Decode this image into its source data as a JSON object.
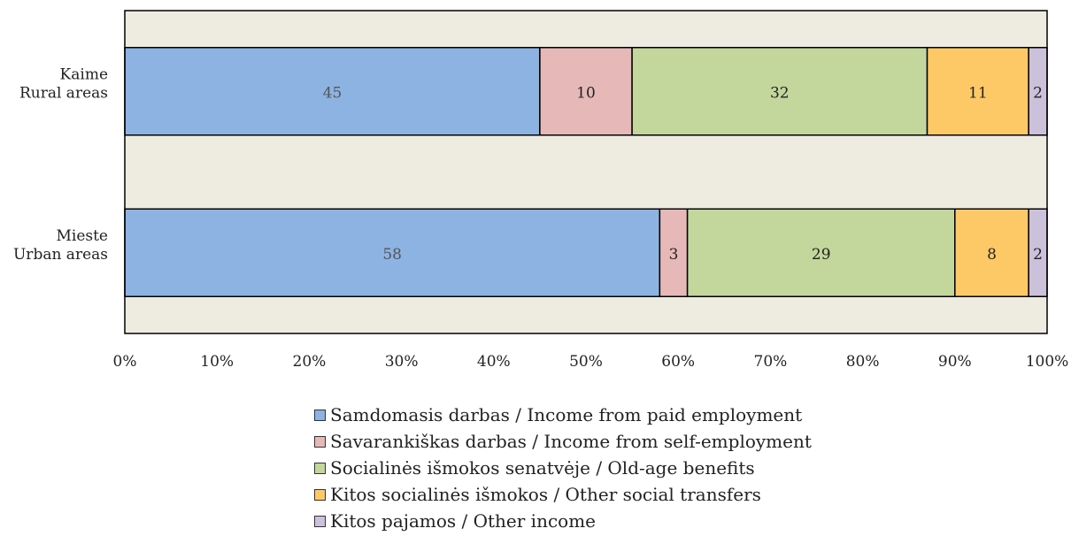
{
  "chart_data": {
    "type": "bar",
    "orientation": "horizontal",
    "stacked": "percent",
    "categories": [
      "Kaime\nRural areas",
      "Mieste\nUrban areas"
    ],
    "series": [
      {
        "name": "Samdomasis darbas / Income from paid employment",
        "color": "#8db3e2",
        "values": [
          45,
          58
        ]
      },
      {
        "name": "Savarankiškas darbas / Income from self-employment",
        "color": "#e6b9b8",
        "values": [
          10,
          3
        ]
      },
      {
        "name": "Socialinės išmokos senatvėje / Old-age benefits",
        "color": "#c3d69b",
        "values": [
          32,
          29
        ]
      },
      {
        "name": "Kitos socialinės išmokos / Other social transfers",
        "color": "#fdc966",
        "values": [
          11,
          8
        ]
      },
      {
        "name": "Kitos pajamos / Other income",
        "color": "#ccc1da",
        "values": [
          2,
          2
        ]
      }
    ],
    "xlim": [
      0,
      100
    ],
    "xticks": [
      "0%",
      "10%",
      "20%",
      "30%",
      "40%",
      "50%",
      "60%",
      "70%",
      "80%",
      "90%",
      "100%"
    ],
    "plot_background": "#eeece1",
    "grid": false,
    "legend_position": "bottom"
  }
}
